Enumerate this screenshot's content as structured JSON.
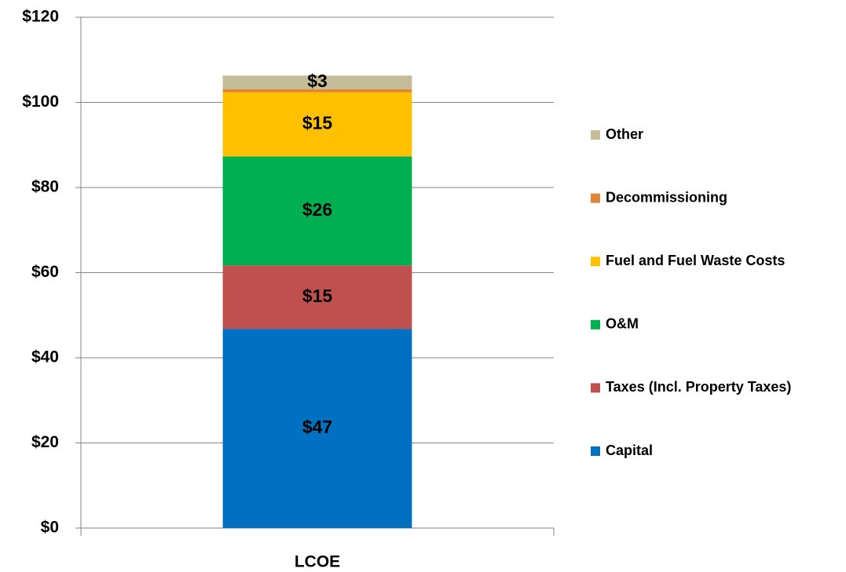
{
  "chart_data": {
    "type": "stacked_bar",
    "categories": [
      "LCOE"
    ],
    "series": [
      {
        "name": "Capital",
        "color": "#0070c0",
        "values": [
          46.8
        ],
        "value_labels": [
          "$47"
        ]
      },
      {
        "name": "Taxes (Incl. Property Taxes)",
        "color": "#c0504d",
        "values": [
          14.9
        ],
        "value_labels": [
          "$15"
        ]
      },
      {
        "name": "O&M",
        "color": "#00b050",
        "values": [
          25.6
        ],
        "value_labels": [
          "$26"
        ]
      },
      {
        "name": "Fuel and Fuel Waste Costs",
        "color": "#ffc000",
        "values": [
          15.1
        ],
        "value_labels": [
          "$15"
        ]
      },
      {
        "name": "Decommissioning",
        "color": "#e0843a",
        "values": [
          0.7
        ]
      },
      {
        "name": "Other",
        "color": "#c4bd97",
        "values": [
          3.2
        ],
        "value_labels": [
          "$3"
        ]
      }
    ],
    "ylim": [
      0,
      120
    ],
    "yticks": [
      {
        "value": 0,
        "label": "$0"
      },
      {
        "value": 20,
        "label": "$20"
      },
      {
        "value": 40,
        "label": "$40"
      },
      {
        "value": 60,
        "label": "$60"
      },
      {
        "value": 80,
        "label": "$80"
      },
      {
        "value": 100,
        "label": "$100"
      },
      {
        "value": 120,
        "label": "$120"
      }
    ],
    "grid": true,
    "legend": "right"
  }
}
